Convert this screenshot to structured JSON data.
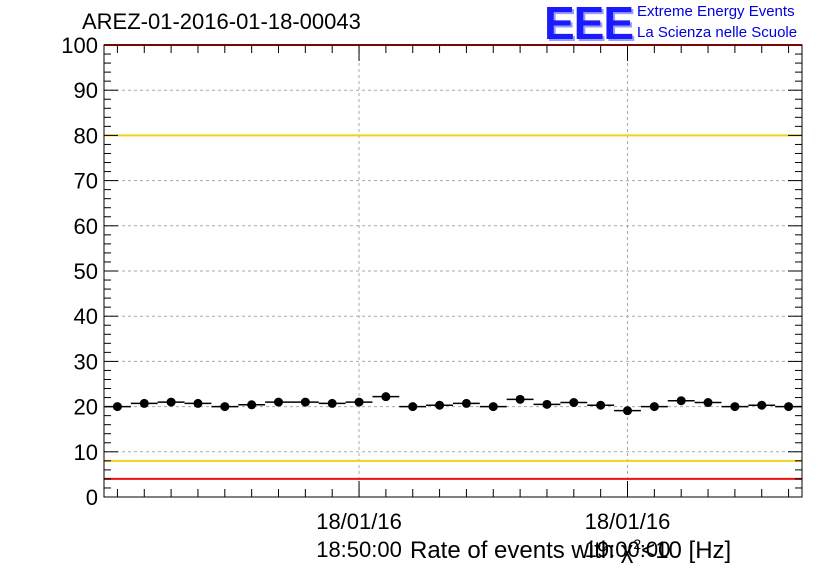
{
  "title": "AREZ-01-2016-01-18-00043",
  "logo": {
    "mark": "EEE",
    "line1": "Extreme Energy Events",
    "line2": "La Scienza nelle Scuole"
  },
  "colors": {
    "limit_red": "#ee1111",
    "limit_yellow": "#f2d21c",
    "grid": "#aaaaaa",
    "marker": "#000000",
    "logo_blue": "#1a1aff"
  },
  "chart_data": {
    "type": "scatter",
    "xlabel": "Rate of events with χ²<10 [Hz]",
    "xlabel_parts": {
      "before": "Rate of events with χ",
      "sup": "2",
      "after": "<10 [Hz]"
    },
    "ylim": [
      0,
      100
    ],
    "yticks": [
      "0",
      "10",
      "20",
      "30",
      "40",
      "50",
      "60",
      "70",
      "80",
      "90",
      "100"
    ],
    "xticks": [
      {
        "date": "18/01/16",
        "time": "18:50:00",
        "index": 9.5
      },
      {
        "date": "18/01/16",
        "time": "19:00:00",
        "index": 19.5
      }
    ],
    "grid": true,
    "reference_lines": [
      {
        "value": 100,
        "color": "red"
      },
      {
        "value": 80,
        "color": "yellow"
      },
      {
        "value": 8,
        "color": "yellow"
      },
      {
        "value": 4,
        "color": "red"
      }
    ],
    "series": [
      {
        "values": [
          20.0,
          20.7,
          21.0,
          20.7,
          20.0,
          20.4,
          21.0,
          21.0,
          20.7,
          21.0,
          22.2,
          20.0,
          20.3,
          20.7,
          20.0,
          21.6,
          20.5,
          20.9,
          20.3,
          19.1,
          20.0,
          21.3,
          20.9,
          20.0,
          20.3,
          20.0
        ]
      }
    ]
  }
}
